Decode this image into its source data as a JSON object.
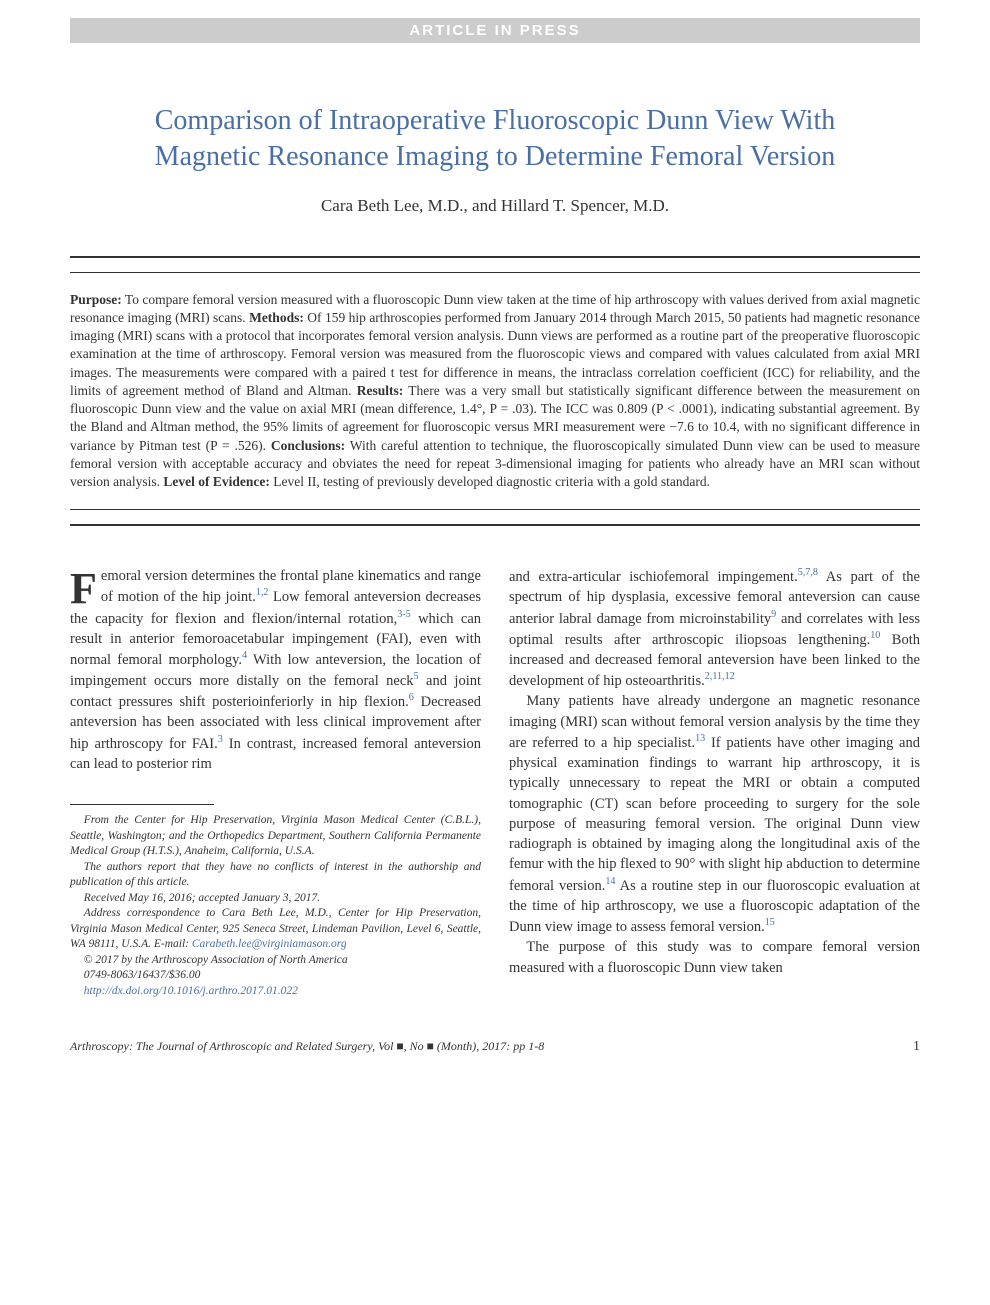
{
  "banner": "ARTICLE IN PRESS",
  "title": "Comparison of Intraoperative Fluoroscopic Dunn View With Magnetic Resonance Imaging to Determine Femoral Version",
  "authors": "Cara Beth Lee, M.D., and Hillard T. Spencer, M.D.",
  "abstract": {
    "purpose_label": "Purpose:",
    "purpose": " To compare femoral version measured with a fluoroscopic Dunn view taken at the time of hip arthroscopy with values derived from axial magnetic resonance imaging (MRI) scans. ",
    "methods_label": "Methods:",
    "methods": " Of 159 hip arthroscopies performed from January 2014 through March 2015, 50 patients had magnetic resonance imaging (MRI) scans with a protocol that incorporates femoral version analysis. Dunn views are performed as a routine part of the preoperative fluoroscopic examination at the time of arthroscopy. Femoral version was measured from the fluoroscopic views and compared with values calculated from axial MRI images. The measurements were compared with a paired t test for difference in means, the intraclass correlation coefficient (ICC) for reliability, and the limits of agreement method of Bland and Altman. ",
    "results_label": "Results:",
    "results": " There was a very small but statistically significant difference between the measurement on fluoroscopic Dunn view and the value on axial MRI (mean difference, 1.4°, P = .03). The ICC was 0.809 (P < .0001), indicating substantial agreement. By the Bland and Altman method, the 95% limits of agreement for fluoroscopic versus MRI measurement were −7.6 to 10.4, with no significant difference in variance by Pitman test (P = .526). ",
    "conclusions_label": "Conclusions:",
    "conclusions": " With careful attention to technique, the fluoroscopically simulated Dunn view can be used to measure femoral version with acceptable accuracy and obviates the need for repeat 3-dimensional imaging for patients who already have an MRI scan without version analysis. ",
    "loe_label": "Level of Evidence:",
    "loe": " Level II, testing of previously developed diagnostic criteria with a gold standard."
  },
  "body": {
    "col1_dropcap": "F",
    "col1_p1_a": "emoral version determines the frontal plane kinematics and range of motion of the hip joint.",
    "col1_p1_sup1": "1,2",
    "col1_p1_b": " Low femoral anteversion decreases the capacity for flexion and flexion/internal rotation,",
    "col1_p1_sup2": "3-5",
    "col1_p1_c": " which can result in anterior femoroacetabular impingement (FAI), even with normal femoral morphology.",
    "col1_p1_sup3": "4",
    "col1_p1_d": " With low anteversion, the location of impingement occurs more distally on the femoral neck",
    "col1_p1_sup4": "5",
    "col1_p1_e": " and joint contact pressures shift posterioinferiorly in hip flexion.",
    "col1_p1_sup5": "6",
    "col1_p1_f": " Decreased anteversion has been associated with less clinical improvement after hip arthroscopy for FAI.",
    "col1_p1_sup6": "3",
    "col1_p1_g": " In contrast, increased femoral anteversion can lead to posterior rim",
    "col2_p1_a": "and extra-articular ischiofemoral impingement.",
    "col2_p1_sup1": "5,7,8",
    "col2_p1_b": " As part of the spectrum of hip dysplasia, excessive femoral anteversion can cause anterior labral damage from microinstability",
    "col2_p1_sup2": "9",
    "col2_p1_c": " and correlates with less optimal results after arthroscopic iliopsoas lengthening.",
    "col2_p1_sup3": "10",
    "col2_p1_d": " Both increased and decreased femoral anteversion have been linked to the development of hip osteoarthritis.",
    "col2_p1_sup4": "2,11,12",
    "col2_p2_a": "Many patients have already undergone an magnetic resonance imaging (MRI) scan without femoral version analysis by the time they are referred to a hip specialist.",
    "col2_p2_sup1": "13",
    "col2_p2_b": " If patients have other imaging and physical examination findings to warrant hip arthroscopy, it is typically unnecessary to repeat the MRI or obtain a computed tomographic (CT) scan before proceeding to surgery for the sole purpose of measuring femoral version. The original Dunn view radiograph is obtained by imaging along the longitudinal axis of the femur with the hip flexed to 90° with slight hip abduction to determine femoral version.",
    "col2_p2_sup2": "14",
    "col2_p2_c": " As a routine step in our fluoroscopic evaluation at the time of hip arthroscopy, we use a fluoroscopic adaptation of the Dunn view image to assess femoral version.",
    "col2_p2_sup3": "15",
    "col2_p3": "The purpose of this study was to compare femoral version measured with a fluoroscopic Dunn view taken"
  },
  "footnotes": {
    "affil": "From the Center for Hip Preservation, Virginia Mason Medical Center (C.B.L.), Seattle, Washington; and the Orthopedics Department, Southern California Permanente Medical Group (H.T.S.), Anaheim, California, U.S.A.",
    "coi": "The authors report that they have no conflicts of interest in the authorship and publication of this article.",
    "dates": "Received May 16, 2016; accepted January 3, 2017.",
    "corr_a": "Address correspondence to Cara Beth Lee, M.D., Center for Hip Preservation, Virginia Mason Medical Center, 925 Seneca Street, Lindeman Pavilion, Level 6, Seattle, WA 98111, U.S.A. E-mail: ",
    "corr_email": "Carabeth.lee@virginiamason.org",
    "copyright": "© 2017 by the Arthroscopy Association of North America",
    "issn": "0749-8063/16437/$36.00",
    "doi": "http://dx.doi.org/10.1016/j.arthro.2017.01.022"
  },
  "footer": {
    "journal": "Arthroscopy: The Journal of Arthroscopic and Related Surgery, Vol ■, No ■ (Month), 2017: pp 1-8",
    "page": "1"
  },
  "colors": {
    "banner_bg": "#cccccc",
    "banner_fg": "#ffffff",
    "title": "#4a6fa5",
    "link": "#4a6fa5",
    "text": "#333333"
  },
  "typography": {
    "title_fontsize": 28,
    "authors_fontsize": 17,
    "abstract_fontsize": 13.5,
    "body_fontsize": 14.5,
    "footnote_fontsize": 11.5,
    "footer_fontsize": 12,
    "dropcap_fontsize": 44
  }
}
